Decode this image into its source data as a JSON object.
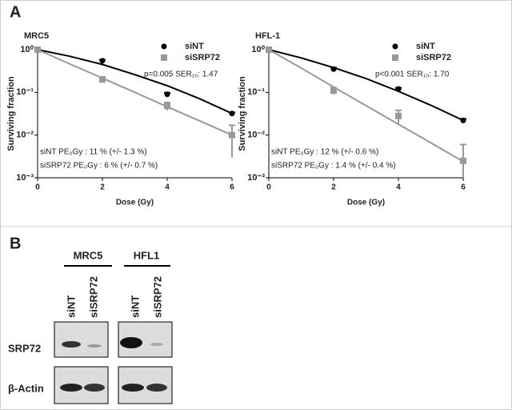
{
  "panel_labels": [
    "A",
    "B"
  ],
  "chart_data": [
    {
      "type": "scatter",
      "title": "MRC5",
      "xlabel": "Dose (Gy)",
      "ylabel": "Surviving fraction",
      "x": [
        0,
        2,
        4,
        6
      ],
      "xlim": [
        0,
        6
      ],
      "xticks": [
        0,
        2,
        4,
        6
      ],
      "ylim": [
        0.001,
        1
      ],
      "log_y": true,
      "yticks": [
        {
          "value": 1,
          "label": "10⁰"
        },
        {
          "value": 0.1,
          "label": "10⁻¹"
        },
        {
          "value": 0.01,
          "label": "10⁻²"
        },
        {
          "value": 0.001,
          "label": "10⁻³"
        }
      ],
      "legend": "upper right",
      "annotations": [
        "p=0.005 SER₁₀: 1.47",
        "siNT PE₀Gy : 11 % (+/- 1.3 %)",
        "siSRP72 PE₀Gy : 6 % (+/- 0.7 %)"
      ],
      "series": [
        {
          "name": "siNT",
          "color": "#000000",
          "marker": "circle",
          "values": [
            1,
            0.55,
            0.09,
            0.032
          ],
          "errors": [
            0,
            0.03,
            0.008,
            0.002
          ],
          "fit": {
            "x": [
              0,
              1,
              2,
              3,
              4,
              5,
              6
            ],
            "values": [
              1,
              0.7,
              0.45,
              0.26,
              0.143,
              0.071,
              0.032
            ]
          }
        },
        {
          "name": "siSRP72",
          "color": "#999999",
          "marker": "square",
          "values": [
            1,
            0.2,
            0.048,
            0.01
          ],
          "errors": [
            0,
            0.03,
            0.01,
            0.007
          ],
          "fit": {
            "x": [
              0,
              1,
              2,
              3,
              4,
              5,
              6
            ],
            "values": [
              1,
              0.46,
              0.215,
              0.1,
              0.046,
              0.0215,
              0.01
            ]
          }
        }
      ]
    },
    {
      "type": "scatter",
      "title": "HFL-1",
      "xlabel": "Dose (Gy)",
      "ylabel": "Surviving fraction",
      "x": [
        0,
        2,
        4,
        6
      ],
      "xlim": [
        0,
        6
      ],
      "xticks": [
        0,
        2,
        4,
        6
      ],
      "ylim": [
        0.001,
        1
      ],
      "log_y": true,
      "yticks": [
        {
          "value": 1,
          "label": "10⁰"
        },
        {
          "value": 0.1,
          "label": "10⁻¹"
        },
        {
          "value": 0.01,
          "label": "10⁻²"
        },
        {
          "value": 0.001,
          "label": "10⁻³"
        }
      ],
      "legend": "upper right",
      "annotations": [
        "p<0.001 SER₁₀: 1.70",
        "siNT PE₀Gy : 12 % (+/- 0.6 %)",
        "siSRP72 PE₀Gy : 1.4 % (+/- 0.4 %)"
      ],
      "series": [
        {
          "name": "siNT",
          "color": "#000000",
          "marker": "circle",
          "values": [
            1,
            0.35,
            0.12,
            0.022
          ],
          "errors": [
            0,
            0.03,
            0.008,
            0.002
          ],
          "fit": {
            "x": [
              0,
              1,
              2,
              3,
              4,
              5,
              6
            ],
            "values": [
              1,
              0.64,
              0.38,
              0.21,
              0.106,
              0.05,
              0.022
            ]
          }
        },
        {
          "name": "siSRP72",
          "color": "#999999",
          "marker": "square",
          "values": [
            1,
            0.11,
            0.028,
            0.0025
          ],
          "errors": [
            0,
            0.02,
            0.01,
            0.0035
          ],
          "fit": {
            "x": [
              0,
              1,
              2,
              3,
              4,
              5,
              6
            ],
            "values": [
              1,
              0.37,
              0.134,
              0.049,
              0.018,
              0.0066,
              0.0024
            ]
          }
        }
      ]
    }
  ],
  "blot": {
    "groups": [
      {
        "label": "MRC5",
        "lanes": [
          "siNT",
          "siSRP72"
        ]
      },
      {
        "label": "HFL1",
        "lanes": [
          "siNT",
          "siSRP72"
        ]
      }
    ],
    "rows": [
      "SRP72",
      "β-Actin"
    ]
  }
}
